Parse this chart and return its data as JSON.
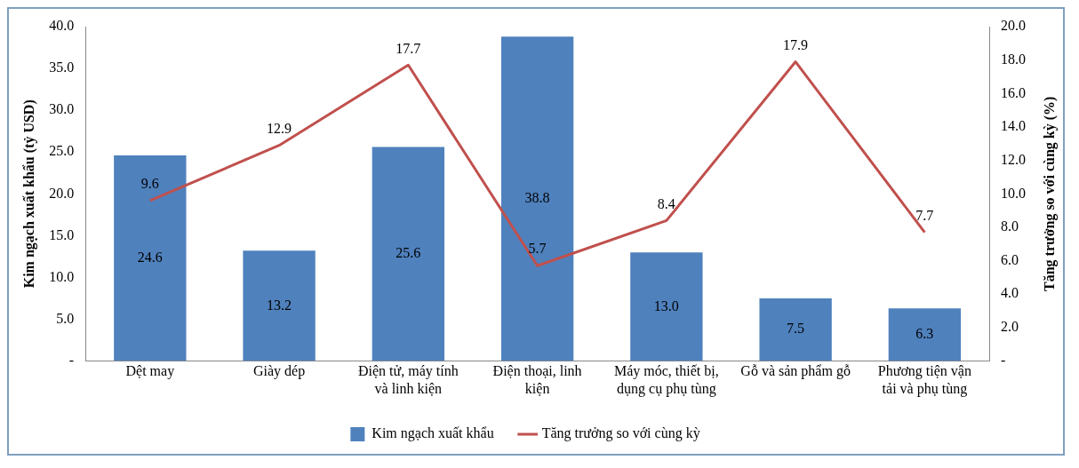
{
  "chart_data": {
    "type": "bar",
    "ylabel": "Kim ngạch xuất khẩu (tỷ USD)",
    "y2label": "Tăng trưởng so với cùng kỳ (%)",
    "categories": [
      "Dệt may",
      "Giày dép",
      "Điện tử, máy tính và linh kiện",
      "Điện thoại, linh kiện",
      "Máy móc, thiết bị, dụng cụ phụ tùng",
      "Gỗ và sản phẩm gỗ",
      "Phương tiện vận tải và phụ tùng"
    ],
    "series": [
      {
        "name": "Kim ngạch xuất khẩu",
        "color": "#4f81bd",
        "values": [
          24.6,
          13.2,
          25.6,
          38.8,
          13.0,
          7.5,
          6.3
        ],
        "value_labels": [
          "24.6",
          "13.2",
          "25.6",
          "38.8",
          "13.0",
          "7.5",
          "6.3"
        ]
      },
      {
        "name": "Tăng trưởng so với cùng kỳ",
        "type": "line",
        "axis": "y2",
        "color": "#c0504d",
        "values": [
          9.6,
          12.9,
          17.7,
          5.7,
          8.4,
          17.9,
          7.7
        ],
        "value_labels": [
          "9.6",
          "12.9",
          "17.7",
          "5.7",
          "8.4",
          "17.9",
          "7.7"
        ]
      }
    ],
    "ylim": [
      0,
      40
    ],
    "yticks": [
      {
        "value": 0,
        "label": "-"
      },
      {
        "value": 5,
        "label": "5.0"
      },
      {
        "value": 10,
        "label": "10.0"
      },
      {
        "value": 15,
        "label": "15.0"
      },
      {
        "value": 20,
        "label": "20.0"
      },
      {
        "value": 25,
        "label": "25.0"
      },
      {
        "value": 30,
        "label": "30.0"
      },
      {
        "value": 35,
        "label": "35.0"
      },
      {
        "value": 40,
        "label": "40.0"
      }
    ],
    "y2lim": [
      0,
      20
    ],
    "y2ticks": [
      {
        "value": 0,
        "label": "-"
      },
      {
        "value": 2,
        "label": "2.0"
      },
      {
        "value": 4,
        "label": "4.0"
      },
      {
        "value": 6,
        "label": "6.0"
      },
      {
        "value": 8,
        "label": "8.0"
      },
      {
        "value": 10,
        "label": "10.0"
      },
      {
        "value": 12,
        "label": "12.0"
      },
      {
        "value": 14,
        "label": "14.0"
      },
      {
        "value": 16,
        "label": "16.0"
      },
      {
        "value": 18,
        "label": "18.0"
      },
      {
        "value": 20,
        "label": "20.0"
      }
    ],
    "legend": "bottom",
    "grid": false,
    "marker": "none",
    "line_style": "solid"
  }
}
